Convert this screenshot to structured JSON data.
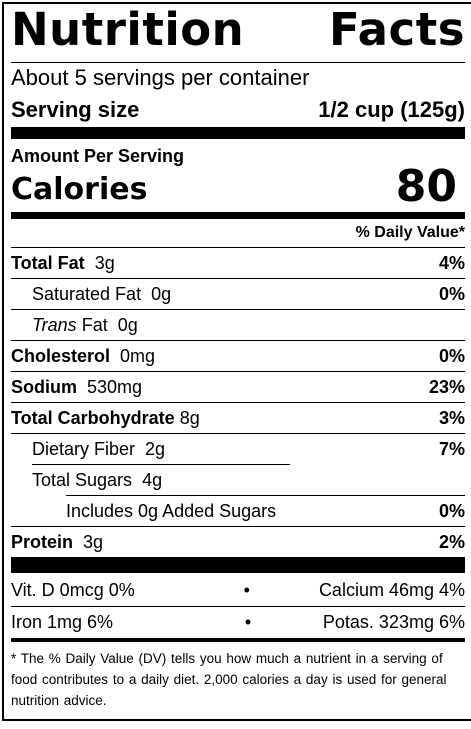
{
  "title_left": "Nutrition",
  "title_right": "Facts",
  "servings_per_container": "About 5 servings per container",
  "serving_size_label": "Serving size",
  "serving_size_value": "1/2 cup (125g)",
  "amount_per_serving": "Amount Per Serving",
  "calories_label": "Calories",
  "calories_value": "80",
  "daily_value_header": "% Daily Value*",
  "nutrients": {
    "total_fat": {
      "name": "Total Fat",
      "amount": "3g",
      "dv": "4%"
    },
    "saturated_fat": {
      "name": "Saturated Fat",
      "amount": "0g",
      "dv": "0%"
    },
    "trans_fat": {
      "name_italic": "Trans",
      "name": "Fat",
      "amount": "0g"
    },
    "cholesterol": {
      "name": "Cholesterol",
      "amount": "0mg",
      "dv": "0%"
    },
    "sodium": {
      "name": "Sodium",
      "amount": "530mg",
      "dv": "23%"
    },
    "total_carb": {
      "name": "Total Carbohydrate",
      "amount": "8g",
      "dv": "3%"
    },
    "fiber": {
      "name": "Dietary Fiber",
      "amount": "2g",
      "dv": "7%"
    },
    "sugars": {
      "name": "Total Sugars",
      "amount": "4g"
    },
    "added_sugars": {
      "text": "Includes 0g Added Sugars",
      "dv": "0%"
    },
    "protein": {
      "name": "Protein",
      "amount": "3g",
      "dv": "2%"
    }
  },
  "vitamins": {
    "vit_d": "Vit. D 0mcg 0%",
    "calcium": "Calcium 46mg 4%",
    "iron": "Iron 1mg 6%",
    "potassium": "Potas. 323mg 6%",
    "bullet": "•"
  },
  "footnote": "* The % Daily Value (DV) tells you how much a nutrient in a serving of food contributes to a daily diet. 2,000 calories a day is used for general nutrition advice."
}
